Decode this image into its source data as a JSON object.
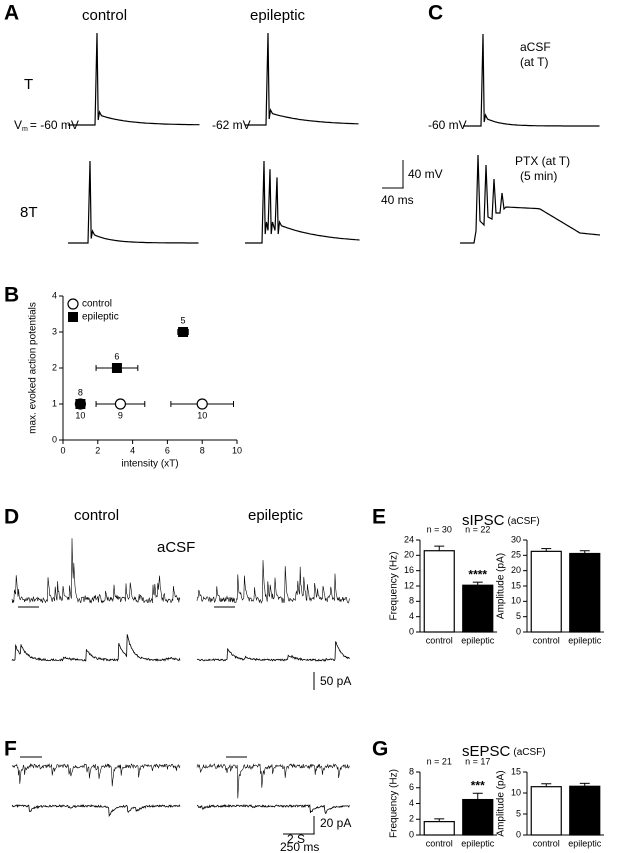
{
  "panels": {
    "A": {
      "label": "A",
      "columns": [
        "control",
        "epileptic"
      ],
      "rows": [
        "T",
        "8T"
      ],
      "vm": {
        "symbol": "V",
        "sub": "m",
        "value": "= -60 mV"
      },
      "vm_epileptic": "-62 mV"
    },
    "B": {
      "label": "B"
    },
    "C": {
      "label": "C",
      "top": [
        "aCSF",
        "(at T)"
      ],
      "vm": "-60 mV",
      "bottom": [
        "PTX (at T)",
        "(5 min)"
      ],
      "scale": [
        "40 mV",
        "40 ms"
      ]
    },
    "D": {
      "label": "D",
      "columns": [
        "control",
        "epileptic"
      ],
      "condition": "aCSF",
      "scale": "50 pA"
    },
    "E": {
      "label": "E",
      "title": "sIPSC",
      "subtitle": "(aCSF)"
    },
    "F": {
      "label": "F",
      "scale": [
        "20 pA",
        "2 S",
        "250 ms"
      ]
    },
    "G": {
      "label": "G",
      "title": "sEPSC",
      "subtitle": "(aCSF)"
    }
  },
  "chart_data": [
    {
      "type": "scatter",
      "xlabel": "intensity (xT)",
      "ylabel": "max. evoked action potentials",
      "xlim": [
        0,
        10
      ],
      "xticks": [
        0,
        2,
        4,
        6,
        8,
        10
      ],
      "ylim": [
        0,
        4
      ],
      "yticks": [
        0,
        1,
        2,
        3,
        4
      ],
      "legend": "top-left",
      "series": [
        {
          "name": "control",
          "marker": "circle",
          "color": "#ffffff",
          "x": [
            1,
            3.3,
            8
          ],
          "y": [
            1,
            1,
            1
          ],
          "xerr": [
            0.2,
            1.4,
            1.8
          ],
          "n": [
            10,
            9,
            10
          ]
        },
        {
          "name": "epileptic",
          "marker": "square",
          "color": "#000000",
          "x": [
            1,
            3.1,
            6.9
          ],
          "y": [
            1,
            2,
            3
          ],
          "xerr": [
            0.2,
            1.2,
            0.3
          ],
          "n": [
            8,
            6,
            5
          ]
        }
      ]
    },
    {
      "type": "bar",
      "ylabel": "Frequency (Hz)",
      "categories": [
        "control",
        "epileptic"
      ],
      "values": [
        21.2,
        12.2
      ],
      "errors": [
        1.2,
        0.8
      ],
      "colors": [
        "#ffffff",
        "#000000"
      ],
      "ylim": [
        0,
        24
      ],
      "yticks": [
        0,
        4,
        8,
        12,
        16,
        20,
        24
      ],
      "annotations": [
        "n = 30",
        "n = 22"
      ],
      "significance": "****"
    },
    {
      "type": "bar",
      "ylabel": "Amplitude (pA)",
      "categories": [
        "control",
        "epileptic"
      ],
      "values": [
        26.3,
        25.6
      ],
      "errors": [
        0.9,
        0.9
      ],
      "colors": [
        "#ffffff",
        "#000000"
      ],
      "ylim": [
        0,
        30
      ],
      "yticks": [
        0,
        5,
        10,
        15,
        20,
        25,
        30
      ]
    },
    {
      "type": "bar",
      "ylabel": "Frequency (Hz)",
      "categories": [
        "control",
        "epileptic"
      ],
      "values": [
        1.7,
        4.5
      ],
      "errors": [
        0.35,
        0.8
      ],
      "colors": [
        "#ffffff",
        "#000000"
      ],
      "ylim": [
        0,
        8
      ],
      "yticks": [
        0,
        2,
        4,
        6,
        8
      ],
      "annotations": [
        "n = 21",
        "n = 17"
      ],
      "significance": "***"
    },
    {
      "type": "bar",
      "ylabel": "Amplitude (pA)",
      "categories": [
        "control",
        "epileptic"
      ],
      "values": [
        11.5,
        11.6
      ],
      "errors": [
        0.7,
        0.7
      ],
      "colors": [
        "#ffffff",
        "#000000"
      ],
      "ylim": [
        0,
        15
      ],
      "yticks": [
        0,
        5,
        10,
        15
      ]
    }
  ]
}
